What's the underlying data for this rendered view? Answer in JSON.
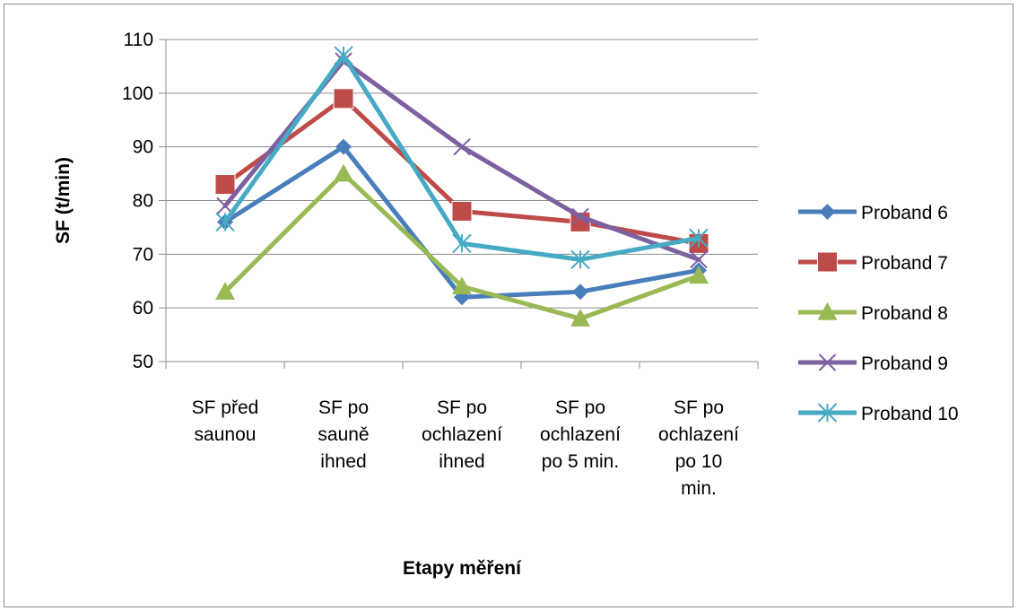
{
  "chart_data": {
    "type": "line",
    "categories": [
      [
        "SF před",
        "saunou"
      ],
      [
        "SF po",
        "sauně",
        "ihned"
      ],
      [
        "SF po",
        "ochlazení",
        "ihned"
      ],
      [
        "SF po",
        "ochlazení",
        "po 5 min."
      ],
      [
        "SF po",
        "ochlazení",
        "po 10",
        "min."
      ]
    ],
    "series": [
      {
        "name": "Proband 6",
        "values": [
          76,
          90,
          62,
          63,
          67
        ],
        "color": "#4a7ebb",
        "marker": "diamond"
      },
      {
        "name": "Proband 7",
        "values": [
          83,
          99,
          78,
          76,
          72
        ],
        "color": "#be4b48",
        "marker": "square"
      },
      {
        "name": "Proband 8",
        "values": [
          63,
          85,
          64,
          58,
          66
        ],
        "color": "#98b954",
        "marker": "triangle"
      },
      {
        "name": "Proband 9",
        "values": [
          79,
          106,
          90,
          77,
          69
        ],
        "color": "#7d60a0",
        "marker": "x"
      },
      {
        "name": "Proband 10",
        "values": [
          76,
          107,
          72,
          69,
          73
        ],
        "color": "#46aac5",
        "marker": "star"
      }
    ],
    "xlabel": "Etapy měření",
    "ylabel": "SF (t/min)",
    "ylim": [
      50,
      110
    ],
    "yticks": [
      50,
      60,
      70,
      80,
      90,
      100,
      110
    ],
    "grid": "horizontal",
    "legend": "right"
  }
}
